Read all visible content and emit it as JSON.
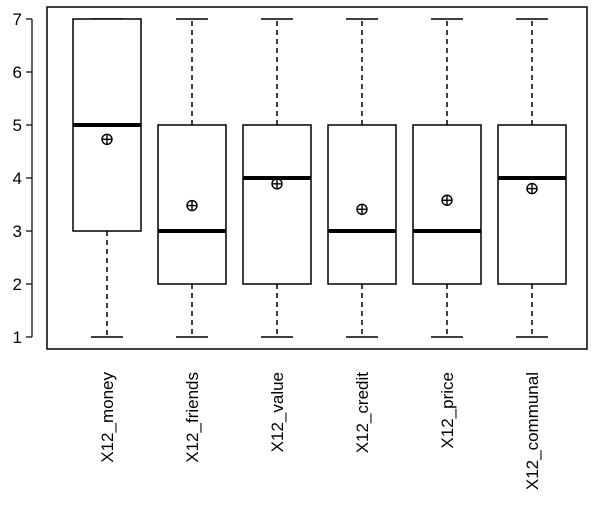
{
  "chart_data": {
    "type": "boxplot",
    "title": "",
    "xlabel": "",
    "ylabel": "",
    "ylim": [
      1,
      7
    ],
    "yticks": [
      1,
      2,
      3,
      4,
      5,
      6,
      7
    ],
    "grid": false,
    "categories": [
      "X12_money",
      "X12_friends",
      "X12_value",
      "X12_credit",
      "X12_price",
      "X12_communal"
    ],
    "boxes": [
      {
        "whisker_low": 1,
        "q1": 3,
        "median": 5,
        "q3": 7,
        "whisker_high": 7,
        "mean": 4.73
      },
      {
        "whisker_low": 1,
        "q1": 2,
        "median": 3,
        "q3": 5,
        "whisker_high": 7,
        "mean": 3.48
      },
      {
        "whisker_low": 1,
        "q1": 2,
        "median": 4,
        "q3": 5,
        "whisker_high": 7,
        "mean": 3.89
      },
      {
        "whisker_low": 1,
        "q1": 2,
        "median": 3,
        "q3": 5,
        "whisker_high": 7,
        "mean": 3.41
      },
      {
        "whisker_low": 1,
        "q1": 2,
        "median": 3,
        "q3": 5,
        "whisker_high": 7,
        "mean": 3.58
      },
      {
        "whisker_low": 1,
        "q1": 2,
        "median": 4,
        "q3": 5,
        "whisker_high": 7,
        "mean": 3.8
      }
    ],
    "mean_marker": "circle-plus"
  }
}
